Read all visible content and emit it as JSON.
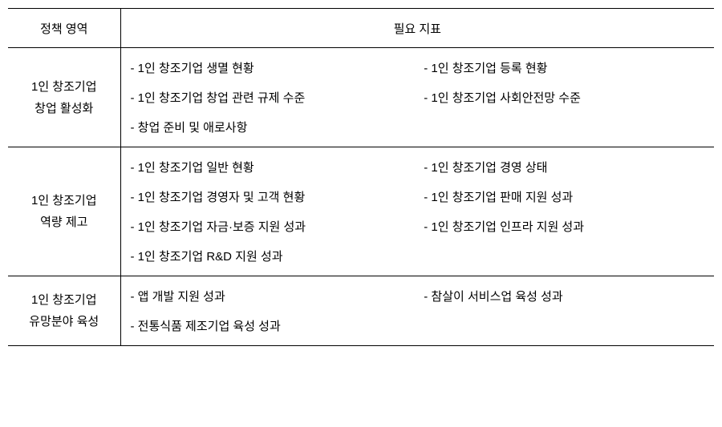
{
  "header": {
    "col1": "정책 영역",
    "col2": "필요 지표"
  },
  "sections": [
    {
      "category": "1인 창조기업\n창업 활성화",
      "rows": [
        {
          "left": "1인 창조기업 생멸 현황",
          "right": "1인 창조기업 등록 현황"
        },
        {
          "left": "1인 창조기업 창업 관련 규제 수준",
          "right": "1인 창조기업 사회안전망 수준"
        },
        {
          "left": "창업 준비 및 애로사항",
          "right": ""
        }
      ]
    },
    {
      "category": "1인 창조기업\n역량 제고",
      "rows": [
        {
          "left": "1인 창조기업 일반 현황",
          "right": "1인 창조기업 경영 상태"
        },
        {
          "left": "1인 창조기업 경영자 및 고객 현황",
          "right": "1인 창조기업 판매 지원 성과"
        },
        {
          "left": "1인 창조기업 자금·보증 지원 성과",
          "right": "1인 창조기업 인프라 지원 성과"
        },
        {
          "left": "1인 창조기업 R&D 지원 성과",
          "right": ""
        }
      ]
    },
    {
      "category": "1인 창조기업\n유망분야 육성",
      "rows": [
        {
          "left": "앱 개발 지원 성과",
          "right": "참살이 서비스업 육성 성과"
        },
        {
          "left": "전통식품 제조기업 육성 성과",
          "right": ""
        }
      ]
    }
  ]
}
